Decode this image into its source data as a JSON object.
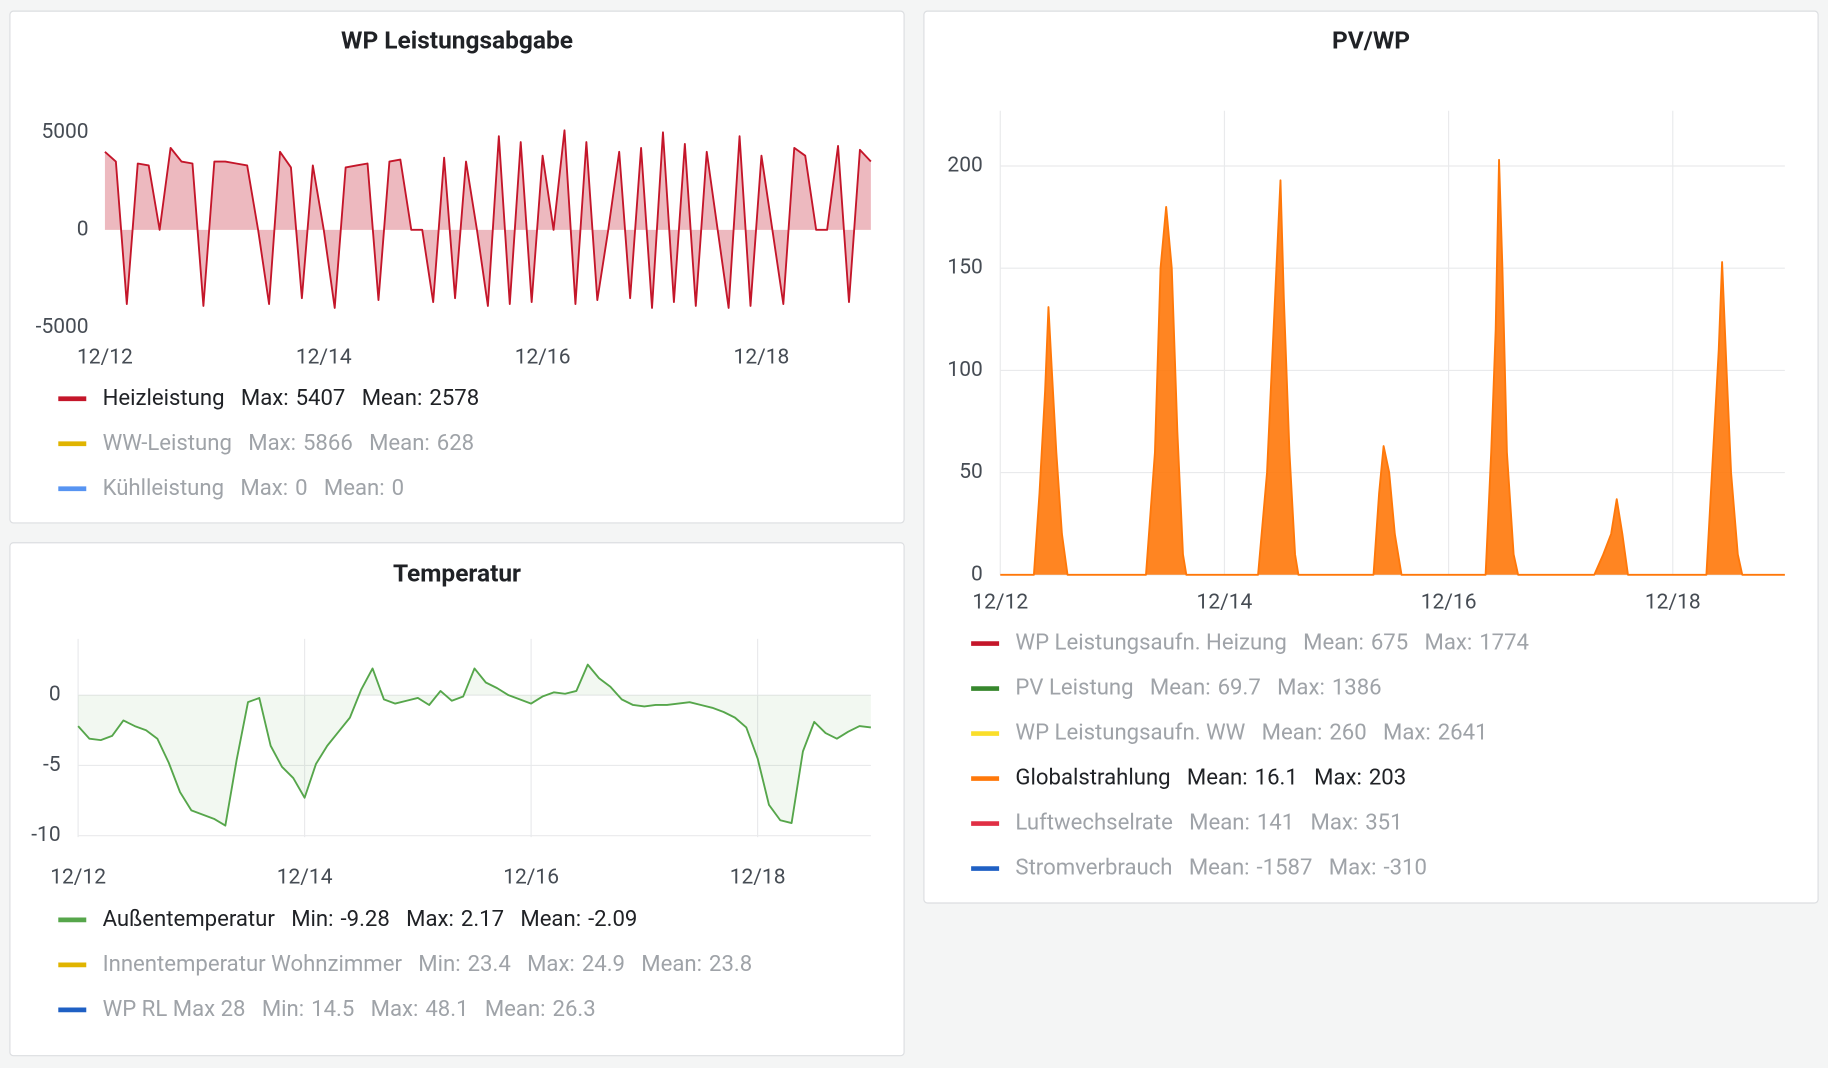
{
  "chart_data": [
    {
      "type": "line",
      "title": "WP Leistungsabgabe",
      "x": [
        12,
        12.1,
        12.2,
        12.3,
        12.4,
        12.5,
        12.6,
        12.7,
        12.8,
        12.9,
        13,
        13.1,
        13.2,
        13.3,
        13.4,
        13.5,
        13.6,
        13.7,
        13.8,
        13.9,
        14,
        14.1,
        14.2,
        14.3,
        14.4,
        14.5,
        14.6,
        14.7,
        14.8,
        14.9,
        15,
        15.1,
        15.2,
        15.3,
        15.4,
        15.5,
        15.6,
        15.7,
        15.8,
        15.9,
        16,
        16.1,
        16.2,
        16.3,
        16.4,
        16.5,
        16.6,
        16.7,
        16.8,
        16.9,
        17,
        17.1,
        17.2,
        17.3,
        17.4,
        17.5,
        17.6,
        17.7,
        17.8,
        17.9,
        18,
        18.1,
        18.2,
        18.3,
        18.4,
        18.5,
        18.6,
        18.7,
        18.8,
        18.9,
        19
      ],
      "xlim": [
        12,
        19
      ],
      "xticks": [
        {
          "value": 12,
          "label": "12/12"
        },
        {
          "value": 14,
          "label": "12/14"
        },
        {
          "value": 16,
          "label": "12/16"
        },
        {
          "value": 18,
          "label": "12/18"
        }
      ],
      "ylim": [
        -5250,
        6100
      ],
      "yticks": [
        -5000,
        0,
        5000
      ],
      "grid": false,
      "fill_opacity": 0.3,
      "series": [
        {
          "name": "Heizleistung",
          "color": "#c4162a",
          "values": [
            4000,
            3500,
            -3800,
            3400,
            3300,
            0,
            4200,
            3500,
            3400,
            -3900,
            3500,
            3500,
            3400,
            3300,
            0,
            -3800,
            4000,
            3200,
            -3500,
            3300,
            0,
            -4000,
            3200,
            3300,
            3400,
            -3600,
            3500,
            3600,
            0,
            0,
            -3700,
            3700,
            -3500,
            3500,
            0,
            -3900,
            4800,
            -3800,
            4500,
            -3700,
            3800,
            0,
            5100,
            -3800,
            4500,
            -3600,
            0,
            4000,
            -3500,
            4200,
            -4000,
            5000,
            -3700,
            4400,
            -3900,
            4000,
            0,
            -4000,
            4800,
            -3900,
            3800,
            0,
            -3800,
            4200,
            3800,
            0,
            0,
            4300,
            -3700,
            4100,
            3500
          ],
          "stats": [
            {
              "label": "Max:",
              "value": 5407
            },
            {
              "label": "Mean:",
              "value": 2578
            }
          ]
        },
        {
          "name": "WW-Leistung",
          "color": "#e0b400",
          "hidden": true,
          "stats": [
            {
              "label": "Max:",
              "value": 5866
            },
            {
              "label": "Mean:",
              "value": 628
            }
          ]
        },
        {
          "name": "Kühlleistung",
          "color": "#5794f2",
          "hidden": true,
          "stats": [
            {
              "label": "Max:",
              "value": 0
            },
            {
              "label": "Mean:",
              "value": 0
            }
          ]
        }
      ]
    },
    {
      "type": "line",
      "title": "PV/WP",
      "x": [
        12,
        12.3,
        12.35,
        12.4,
        12.43,
        12.46,
        12.5,
        12.55,
        12.6,
        13.3,
        13.38,
        13.43,
        13.48,
        13.53,
        13.58,
        13.63,
        13.66,
        14.3,
        14.38,
        14.43,
        14.5,
        14.53,
        14.58,
        14.63,
        14.66,
        15.33,
        15.38,
        15.42,
        15.47,
        15.52,
        15.58,
        16.33,
        16.38,
        16.42,
        16.45,
        16.48,
        16.52,
        16.58,
        16.62,
        17.3,
        17.38,
        17.45,
        17.5,
        17.55,
        17.6,
        18.3,
        18.36,
        18.41,
        18.44,
        18.48,
        18.52,
        18.58,
        18.62,
        19
      ],
      "xlim": [
        12,
        19
      ],
      "xticks": [
        {
          "value": 12,
          "label": "12/12"
        },
        {
          "value": 14,
          "label": "12/14"
        },
        {
          "value": 16,
          "label": "12/16"
        },
        {
          "value": 18,
          "label": "12/18"
        }
      ],
      "ylim": [
        0,
        227
      ],
      "yticks": [
        0,
        50,
        100,
        150,
        200
      ],
      "grid": true,
      "fill_opacity": 0.9,
      "series": [
        {
          "name": "WP Leistungsaufn. Heizung",
          "color": "#c4162a",
          "hidden": true,
          "stats": [
            {
              "label": "Mean:",
              "value": 675
            },
            {
              "label": "Max:",
              "value": 1774
            }
          ]
        },
        {
          "name": "PV Leistung",
          "color": "#37872d",
          "hidden": true,
          "stats": [
            {
              "label": "Mean:",
              "value": 69.7
            },
            {
              "label": "Max:",
              "value": 1386
            }
          ]
        },
        {
          "name": "WP Leistungsaufn. WW",
          "color": "#fade2a",
          "hidden": true,
          "stats": [
            {
              "label": "Mean:",
              "value": 260
            },
            {
              "label": "Max:",
              "value": 2641
            }
          ]
        },
        {
          "name": "Globalstrahlung",
          "color": "#ff780a",
          "values": [
            0,
            0,
            40,
            90,
            131,
            100,
            60,
            20,
            0,
            0,
            60,
            150,
            180,
            150,
            70,
            10,
            0,
            0,
            50,
            110,
            193,
            135,
            60,
            10,
            0,
            0,
            40,
            63,
            50,
            20,
            0,
            0,
            60,
            120,
            203,
            150,
            60,
            10,
            0,
            0,
            10,
            20,
            37,
            20,
            0,
            0,
            60,
            110,
            153,
            100,
            50,
            10,
            0,
            0
          ],
          "stats": [
            {
              "label": "Mean:",
              "value": 16.1
            },
            {
              "label": "Max:",
              "value": 203
            }
          ]
        },
        {
          "name": "Luftwechselrate",
          "color": "#e02f44",
          "hidden": true,
          "stats": [
            {
              "label": "Mean:",
              "value": 141
            },
            {
              "label": "Max:",
              "value": 351
            }
          ]
        },
        {
          "name": "Stromverbrauch",
          "color": "#1f60c4",
          "hidden": true,
          "stats": [
            {
              "label": "Mean:",
              "value": -1587
            },
            {
              "label": "Max:",
              "value": -310
            }
          ]
        }
      ]
    },
    {
      "type": "line",
      "title": "Temperatur",
      "x": [
        12,
        12.1,
        12.2,
        12.3,
        12.4,
        12.5,
        12.6,
        12.7,
        12.8,
        12.9,
        13,
        13.1,
        13.2,
        13.3,
        13.4,
        13.5,
        13.6,
        13.7,
        13.8,
        13.9,
        14,
        14.1,
        14.2,
        14.3,
        14.4,
        14.5,
        14.6,
        14.7,
        14.8,
        14.9,
        15,
        15.1,
        15.2,
        15.3,
        15.4,
        15.5,
        15.6,
        15.7,
        15.8,
        15.9,
        16,
        16.1,
        16.2,
        16.3,
        16.4,
        16.5,
        16.6,
        16.7,
        16.8,
        16.9,
        17,
        17.1,
        17.2,
        17.3,
        17.4,
        17.5,
        17.6,
        17.7,
        17.8,
        17.9,
        18,
        18.1,
        18.2,
        18.3,
        18.4,
        18.5,
        18.6,
        18.7,
        18.8,
        18.9,
        19
      ],
      "xlim": [
        12,
        19
      ],
      "xticks": [
        {
          "value": 12,
          "label": "12/12"
        },
        {
          "value": 14,
          "label": "12/14"
        },
        {
          "value": 16,
          "label": "12/16"
        },
        {
          "value": 18,
          "label": "12/18"
        }
      ],
      "ylim": [
        -10.1,
        4
      ],
      "yticks": [
        -10,
        -5,
        0
      ],
      "grid": true,
      "fill_opacity": 0.08,
      "series": [
        {
          "name": "Außentemperatur",
          "color": "#56a64b",
          "values": [
            -2.2,
            -3.1,
            -3.2,
            -2.9,
            -1.8,
            -2.2,
            -2.5,
            -3.1,
            -4.8,
            -6.9,
            -8.2,
            -8.5,
            -8.8,
            -9.28,
            -4.6,
            -0.5,
            -0.2,
            -3.6,
            -5.1,
            -5.9,
            -7.3,
            -4.9,
            -3.6,
            -2.6,
            -1.6,
            0.4,
            1.9,
            -0.3,
            -0.6,
            -0.4,
            -0.2,
            -0.7,
            0.3,
            -0.4,
            -0.1,
            1.9,
            0.9,
            0.5,
            0,
            -0.3,
            -0.6,
            -0.1,
            0.2,
            0.1,
            0.3,
            2.17,
            1.2,
            0.6,
            -0.3,
            -0.7,
            -0.8,
            -0.7,
            -0.7,
            -0.6,
            -0.5,
            -0.7,
            -0.9,
            -1.2,
            -1.6,
            -2.3,
            -4.5,
            -7.8,
            -8.9,
            -9.1,
            -4,
            -1.9,
            -2.7,
            -3.1,
            -2.6,
            -2.2,
            -2.3
          ],
          "stats": [
            {
              "label": "Min:",
              "value": -9.28
            },
            {
              "label": "Max:",
              "value": 2.17
            },
            {
              "label": "Mean:",
              "value": -2.09
            }
          ]
        },
        {
          "name": "Innentemperatur Wohnzimmer",
          "color": "#e0b400",
          "hidden": true,
          "stats": [
            {
              "label": "Min:",
              "value": 23.4
            },
            {
              "label": "Max:",
              "value": 24.9
            },
            {
              "label": "Mean:",
              "value": 23.8
            }
          ]
        },
        {
          "name": "WP RL Max 28",
          "color": "#1f60c4",
          "hidden": true,
          "stats": [
            {
              "label": "Min:",
              "value": 14.5
            },
            {
              "label": "Max:",
              "value": 48.1
            },
            {
              "label": "Mean:",
              "value": 26.3
            }
          ]
        }
      ]
    }
  ]
}
